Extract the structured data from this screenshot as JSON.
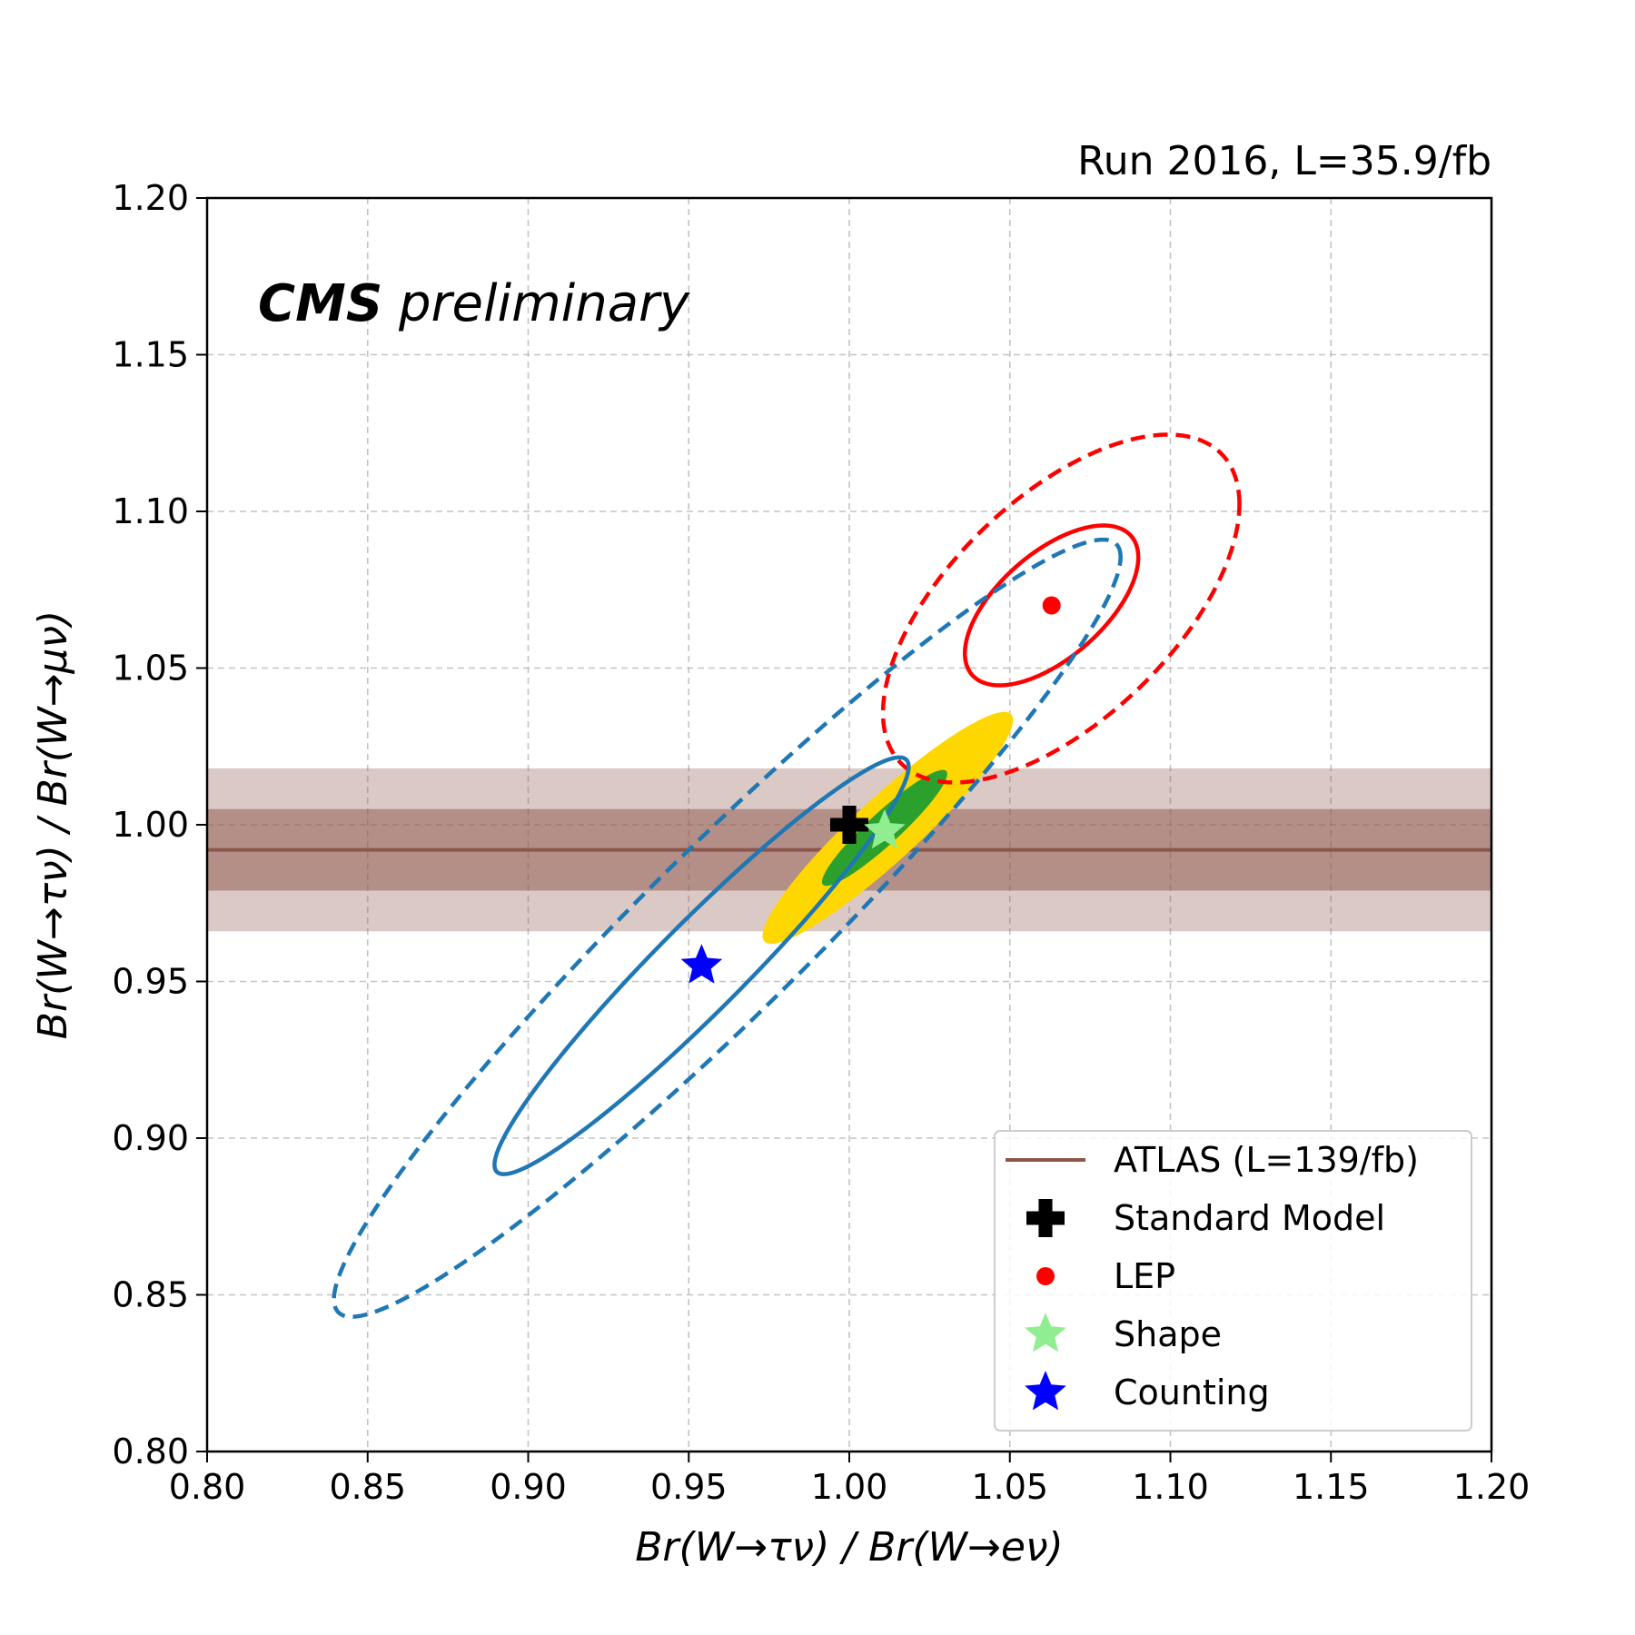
{
  "chart_data": {
    "type": "scatter",
    "run_label": "Run 2016, L=35.9/fb",
    "cms_bold": "CMS",
    "cms_italic": " preliminary",
    "xlabel": "Br(W→τν) / Br(W→eν)",
    "ylabel": "Br(W→τν) / Br(W→μν)",
    "xlim": [
      0.8,
      1.2
    ],
    "ylim": [
      0.8,
      1.2
    ],
    "xticks": [
      "0.80",
      "0.85",
      "0.90",
      "0.95",
      "1.00",
      "1.05",
      "1.10",
      "1.15",
      "1.20"
    ],
    "yticks": [
      "0.80",
      "0.85",
      "0.90",
      "0.95",
      "1.00",
      "1.05",
      "1.10",
      "1.15",
      "1.20"
    ],
    "grid": true,
    "legend_position": "lower-right",
    "atlas": {
      "name": "ATLAS (L=139/fb)",
      "central": 0.992,
      "band_inner": [
        0.979,
        1.005
      ],
      "band_outer": [
        0.966,
        1.018
      ],
      "color": "#8c564b"
    },
    "points": [
      {
        "name": "Standard Model",
        "x": 1.0,
        "y": 1.0,
        "marker": "plus",
        "color": "#000000"
      },
      {
        "name": "LEP",
        "x": 1.063,
        "y": 1.07,
        "marker": "circle",
        "color": "#ff0000"
      },
      {
        "name": "Shape",
        "x": 1.011,
        "y": 0.998,
        "marker": "star",
        "color": "#90ee90"
      },
      {
        "name": "Counting",
        "x": 0.954,
        "y": 0.955,
        "marker": "star",
        "color": "#0000ff"
      }
    ],
    "contours": [
      {
        "group": "Shape",
        "level": "2sigma",
        "style": "filled",
        "color": "#ffd700",
        "center": [
          1.012,
          0.999
        ],
        "x_extent": [
          0.973,
          1.051
        ],
        "y_extent": [
          0.962,
          1.036
        ]
      },
      {
        "group": "Shape",
        "level": "1sigma",
        "style": "filled",
        "color": "#2ca02c",
        "center": [
          1.011,
          0.999
        ],
        "x_extent": [
          0.992,
          1.031
        ],
        "y_extent": [
          0.979,
          1.016
        ]
      },
      {
        "group": "LEP",
        "level": "1sigma",
        "style": "solid",
        "color": "#ff0000",
        "center": [
          1.063,
          1.07
        ],
        "x_extent": [
          1.036,
          1.09
        ],
        "y_extent": [
          1.045,
          1.096
        ]
      },
      {
        "group": "LEP",
        "level": "2sigma",
        "style": "dashed",
        "color": "#ff0000",
        "center": [
          1.066,
          1.069
        ],
        "x_extent": [
          1.008,
          1.119
        ],
        "y_extent": [
          1.014,
          1.125
        ]
      },
      {
        "group": "Counting",
        "level": "1sigma",
        "style": "solid",
        "color": "#1f77b4",
        "center": [
          0.954,
          0.955
        ],
        "x_extent": [
          0.891,
          1.02
        ],
        "y_extent": [
          0.889,
          1.022
        ]
      },
      {
        "group": "Counting",
        "level": "2sigma",
        "style": "dashed",
        "color": "#1f77b4",
        "center": [
          0.962,
          0.967
        ],
        "x_extent": [
          0.842,
          1.087
        ],
        "y_extent": [
          0.843,
          1.091
        ]
      }
    ]
  }
}
